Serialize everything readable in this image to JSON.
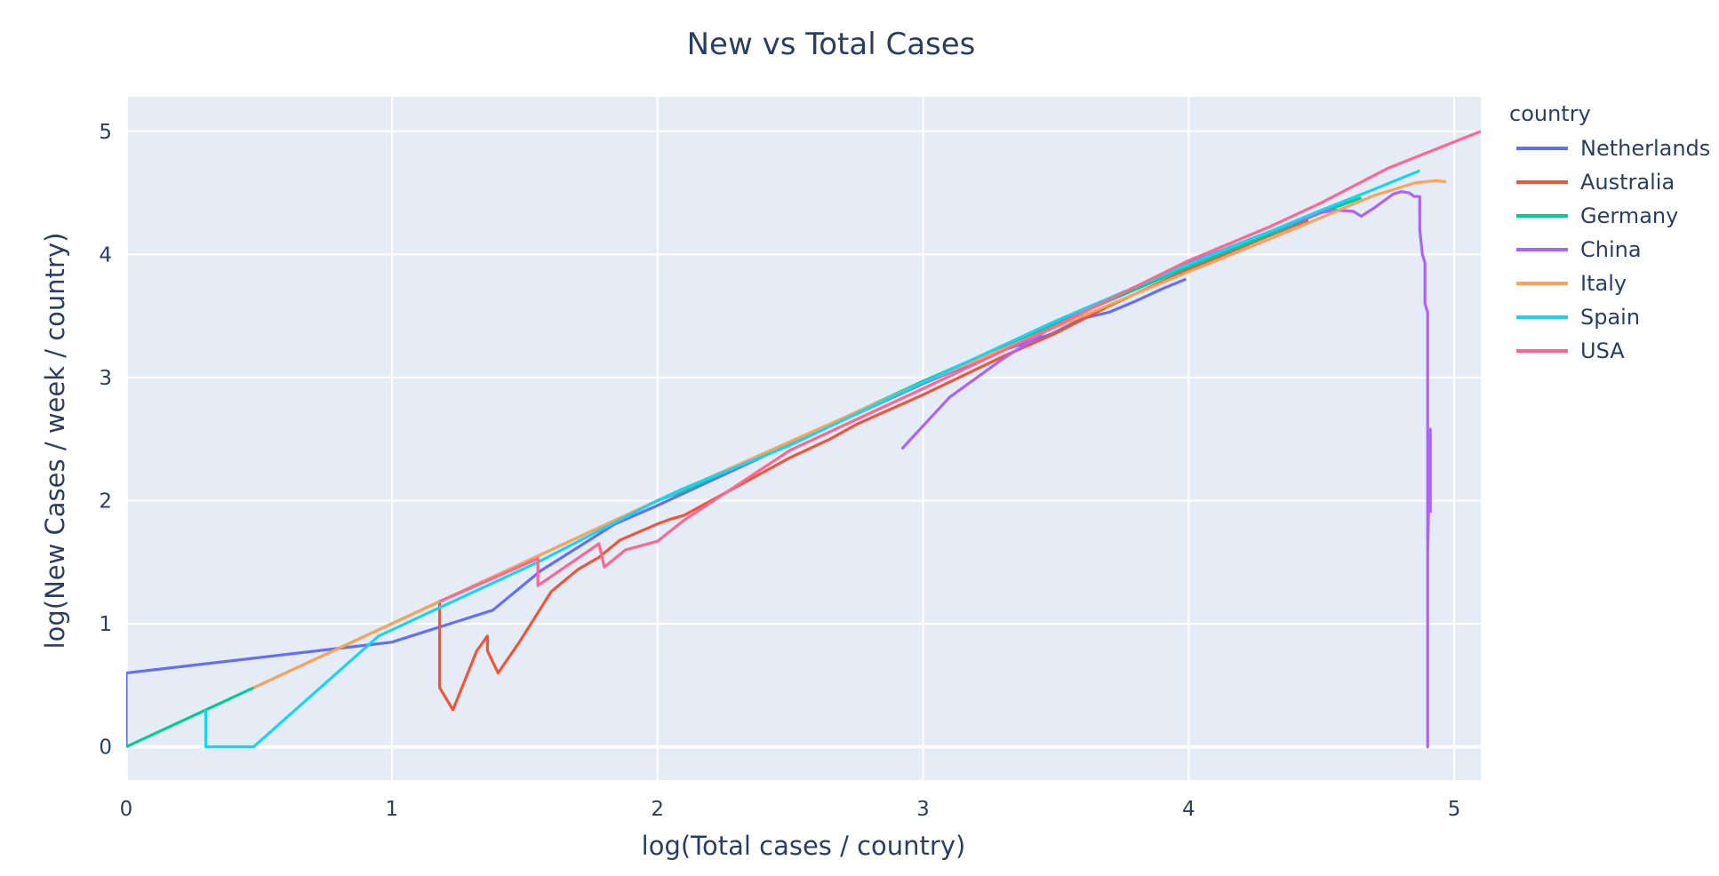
{
  "chart_data": {
    "type": "line",
    "title": "New vs Total Cases",
    "xlabel": "log(Total cases / country)",
    "ylabel": "log(New Cases / week / country)",
    "xlim": [
      0,
      5.1
    ],
    "ylim": [
      -0.27,
      5.28
    ],
    "xticks": [
      "0",
      "1",
      "2",
      "3",
      "4",
      "5"
    ],
    "yticks": [
      "0",
      "1",
      "2",
      "3",
      "4",
      "5"
    ],
    "grid": true,
    "background": "#e5ecf6",
    "legend": {
      "title": "country",
      "position": "right"
    },
    "series": [
      {
        "name": "Netherlands",
        "color": "#636efa",
        "points": [
          [
            0,
            0
          ],
          [
            0,
            0.6
          ],
          [
            1.0,
            0.85
          ],
          [
            1.38,
            1.11
          ],
          [
            1.56,
            1.43
          ],
          [
            1.84,
            1.81
          ],
          [
            2.0,
            1.96
          ],
          [
            2.18,
            2.14
          ],
          [
            2.5,
            2.46
          ],
          [
            3.0,
            2.95
          ],
          [
            3.3,
            3.22
          ],
          [
            3.48,
            3.35
          ],
          [
            3.6,
            3.48
          ],
          [
            3.7,
            3.53
          ],
          [
            3.8,
            3.62
          ],
          [
            3.9,
            3.72
          ],
          [
            3.99,
            3.8
          ]
        ]
      },
      {
        "name": "Australia",
        "color": "#ef553b",
        "points": [
          [
            1.18,
            1.18
          ],
          [
            1.18,
            0.48
          ],
          [
            1.23,
            0.3
          ],
          [
            1.32,
            0.78
          ],
          [
            1.36,
            0.9
          ],
          [
            1.36,
            0.78
          ],
          [
            1.4,
            0.6
          ],
          [
            1.48,
            0.85
          ],
          [
            1.6,
            1.26
          ],
          [
            1.7,
            1.44
          ],
          [
            1.78,
            1.54
          ],
          [
            1.86,
            1.68
          ],
          [
            2.0,
            1.81
          ],
          [
            2.05,
            1.85
          ],
          [
            2.1,
            1.88
          ],
          [
            2.5,
            2.35
          ],
          [
            2.65,
            2.5
          ],
          [
            2.75,
            2.62
          ],
          [
            3.0,
            2.86
          ],
          [
            3.3,
            3.17
          ],
          [
            3.5,
            3.36
          ],
          [
            3.7,
            3.58
          ],
          [
            4.0,
            3.88
          ],
          [
            4.3,
            4.15
          ],
          [
            4.45,
            4.28
          ]
        ]
      },
      {
        "name": "Germany",
        "color": "#00cc96",
        "points": [
          [
            0,
            0
          ],
          [
            0.48,
            0.48
          ],
          [
            1.0,
            1.0
          ],
          [
            1.55,
            1.55
          ],
          [
            2.0,
            2.0
          ],
          [
            2.1,
            2.08
          ],
          [
            2.5,
            2.47
          ],
          [
            3.0,
            2.97
          ],
          [
            3.5,
            3.44
          ],
          [
            4.0,
            3.9
          ],
          [
            4.3,
            4.16
          ],
          [
            4.5,
            4.34
          ],
          [
            4.65,
            4.46
          ]
        ]
      },
      {
        "name": "China",
        "color": "#ab63fa",
        "points": [
          [
            2.92,
            2.42
          ],
          [
            3.1,
            2.84
          ],
          [
            3.3,
            3.15
          ],
          [
            3.48,
            3.4
          ],
          [
            3.7,
            3.64
          ],
          [
            4.0,
            3.93
          ],
          [
            4.3,
            4.18
          ],
          [
            4.5,
            4.34
          ],
          [
            4.55,
            4.36
          ],
          [
            4.62,
            4.35
          ],
          [
            4.65,
            4.31
          ],
          [
            4.7,
            4.38
          ],
          [
            4.77,
            4.49
          ],
          [
            4.8,
            4.51
          ],
          [
            4.83,
            4.5
          ],
          [
            4.85,
            4.47
          ],
          [
            4.87,
            4.47
          ],
          [
            4.87,
            4.2
          ],
          [
            4.88,
            4.0
          ],
          [
            4.89,
            3.93
          ],
          [
            4.89,
            3.6
          ],
          [
            4.9,
            3.53
          ],
          [
            4.9,
            0.0
          ],
          [
            4.9,
            1.58
          ],
          [
            4.91,
            2.58
          ],
          [
            4.91,
            1.9
          ]
        ]
      },
      {
        "name": "Italy",
        "color": "#ffa15a",
        "points": [
          [
            0.48,
            0.48
          ],
          [
            1.0,
            1.0
          ],
          [
            1.2,
            1.2
          ],
          [
            1.55,
            1.55
          ],
          [
            2.0,
            2.0
          ],
          [
            2.5,
            2.48
          ],
          [
            3.0,
            2.96
          ],
          [
            3.5,
            3.41
          ],
          [
            4.0,
            3.86
          ],
          [
            4.3,
            4.12
          ],
          [
            4.5,
            4.3
          ],
          [
            4.7,
            4.48
          ],
          [
            4.85,
            4.58
          ],
          [
            4.93,
            4.6
          ],
          [
            4.97,
            4.59
          ]
        ]
      },
      {
        "name": "Spain",
        "color": "#19d3f3",
        "points": [
          [
            0.3,
            0.3
          ],
          [
            0.3,
            0.0
          ],
          [
            0.48,
            0.0
          ],
          [
            0.95,
            0.9
          ],
          [
            1.2,
            1.15
          ],
          [
            1.55,
            1.5
          ],
          [
            2.0,
            2.0
          ],
          [
            2.1,
            2.1
          ],
          [
            2.5,
            2.45
          ],
          [
            3.0,
            2.96
          ],
          [
            3.5,
            3.46
          ],
          [
            4.0,
            3.92
          ],
          [
            4.3,
            4.18
          ],
          [
            4.5,
            4.36
          ],
          [
            4.7,
            4.53
          ],
          [
            4.87,
            4.68
          ]
        ]
      },
      {
        "name": "USA",
        "color": "#ff6692",
        "points": [
          [
            1.18,
            1.18
          ],
          [
            1.55,
            1.53
          ],
          [
            1.55,
            1.31
          ],
          [
            1.78,
            1.65
          ],
          [
            1.8,
            1.46
          ],
          [
            1.88,
            1.6
          ],
          [
            2.0,
            1.67
          ],
          [
            2.1,
            1.84
          ],
          [
            2.5,
            2.41
          ],
          [
            3.0,
            2.91
          ],
          [
            3.5,
            3.42
          ],
          [
            4.0,
            3.95
          ],
          [
            4.3,
            4.22
          ],
          [
            4.5,
            4.42
          ],
          [
            4.75,
            4.7
          ],
          [
            5.1,
            5.0
          ]
        ]
      }
    ]
  }
}
